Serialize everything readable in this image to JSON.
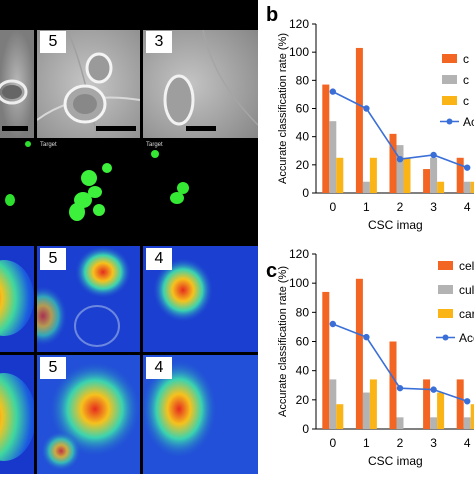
{
  "panel_labels": {
    "b": "b",
    "c": "c"
  },
  "micrographs": {
    "row1_badges": [
      "5",
      "3"
    ],
    "row2_target_labels": [
      "Target",
      "Target"
    ],
    "row3_badges": [
      "5",
      "4"
    ],
    "row4_badges": [
      "5",
      "4"
    ]
  },
  "colors": {
    "cell": "#f26522",
    "culture": "#b3b3b3",
    "camera": "#fbb415",
    "accuracy": "#3a6fd8"
  },
  "chart_data": [
    {
      "id": "b",
      "type": "bar",
      "categories": [
        "0",
        "1",
        "2",
        "3",
        "4"
      ],
      "ylabel": "Accurate classification rate   (%)",
      "xlabel": "CSC imag",
      "ylim": [
        0,
        120
      ],
      "yticks": [
        "0",
        "20",
        "40",
        "60",
        "80",
        "100",
        "120"
      ],
      "grid": false,
      "legend_position": "right",
      "series": [
        {
          "name": "c",
          "kind": "bar",
          "color": "#f26522",
          "values": [
            77,
            103,
            42,
            17,
            25
          ]
        },
        {
          "name": "c",
          "kind": "bar",
          "color": "#b3b3b3",
          "values": [
            51,
            8,
            34,
            25,
            8
          ]
        },
        {
          "name": "c",
          "kind": "bar",
          "color": "#fbb415",
          "values": [
            25,
            25,
            25,
            8,
            8
          ]
        },
        {
          "name": "Ac",
          "kind": "line",
          "color": "#3a6fd8",
          "values": [
            72,
            60,
            24,
            27,
            18
          ]
        }
      ]
    },
    {
      "id": "c",
      "type": "bar",
      "categories": [
        "0",
        "1",
        "2",
        "3",
        "4"
      ],
      "ylabel": "Accurate classification rate   (%)",
      "xlabel": "CSC imag",
      "ylim": [
        0,
        120
      ],
      "yticks": [
        "0",
        "20",
        "40",
        "60",
        "80",
        "100",
        "120"
      ],
      "grid": false,
      "legend_position": "right",
      "series": [
        {
          "name": "cel",
          "kind": "bar",
          "color": "#f26522",
          "values": [
            94,
            103,
            60,
            34,
            34
          ]
        },
        {
          "name": "cul",
          "kind": "bar",
          "color": "#b3b3b3",
          "values": [
            34,
            25,
            8,
            8,
            8
          ]
        },
        {
          "name": "car",
          "kind": "bar",
          "color": "#fbb415",
          "values": [
            17,
            34,
            0,
            25,
            17
          ]
        },
        {
          "name": "Acc",
          "kind": "line",
          "color": "#3a6fd8",
          "values": [
            72,
            63,
            28,
            27,
            19
          ]
        }
      ]
    }
  ]
}
